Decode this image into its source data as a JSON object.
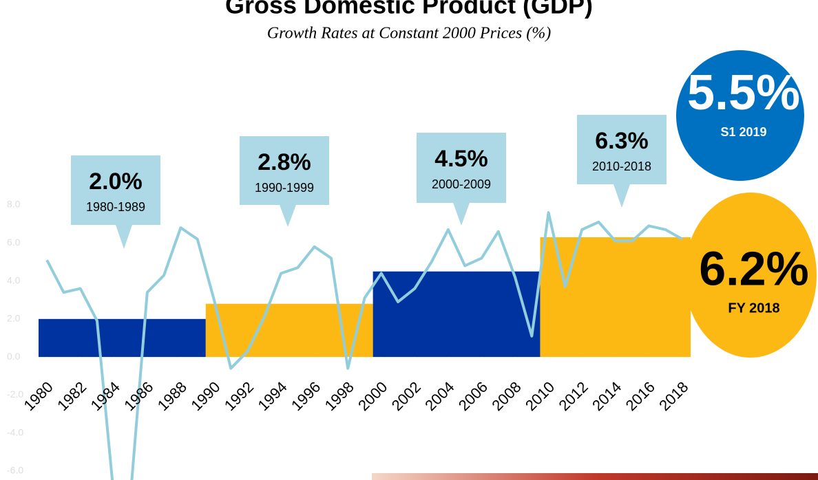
{
  "chart_data": {
    "type": "line",
    "title": "Gross Domestic Product (GDP)",
    "subtitle": "Growth Rates at Constant 2000 Prices (%)",
    "x": [
      1980,
      1981,
      1982,
      1983,
      1984,
      1985,
      1986,
      1987,
      1988,
      1989,
      1990,
      1991,
      1992,
      1993,
      1994,
      1995,
      1996,
      1997,
      1998,
      1999,
      2000,
      2001,
      2002,
      2003,
      2004,
      2005,
      2006,
      2007,
      2008,
      2009,
      2010,
      2011,
      2012,
      2013,
      2014,
      2015,
      2016,
      2017,
      2018
    ],
    "values": [
      5.1,
      3.4,
      3.6,
      1.9,
      -7.3,
      -7.3,
      3.4,
      4.3,
      6.8,
      6.2,
      3.0,
      -0.6,
      0.3,
      2.1,
      4.4,
      4.7,
      5.8,
      5.2,
      -0.6,
      3.1,
      4.4,
      2.9,
      3.6,
      5.0,
      6.7,
      4.8,
      5.2,
      6.6,
      4.2,
      1.1,
      7.6,
      3.7,
      6.7,
      7.1,
      6.1,
      6.1,
      6.9,
      6.7,
      6.2
    ],
    "color": "#92cddc",
    "xlim": [
      1979.5,
      2018.5
    ],
    "xticks": [
      1980,
      1982,
      1984,
      1986,
      1988,
      1990,
      1992,
      1994,
      1996,
      1998,
      2000,
      2002,
      2004,
      2006,
      2008,
      2010,
      2012,
      2014,
      2016,
      2018
    ],
    "ylim": [
      -6.4,
      8
    ],
    "yticks": [
      {
        "value": 8,
        "label": "8.0"
      },
      {
        "value": 6,
        "label": "6.0"
      },
      {
        "value": 4,
        "label": "4.0"
      },
      {
        "value": 2,
        "label": "2.0"
      },
      {
        "value": 0,
        "label": "0.0"
      },
      {
        "value": -2,
        "label": "-2.0"
      },
      {
        "value": -4,
        "label": "-4.0"
      },
      {
        "value": -6,
        "label": "-6.0"
      }
    ],
    "periods": [
      {
        "label": "1980-1989",
        "value": 2.0,
        "value_label": "2.0%",
        "color": "#0033a0"
      },
      {
        "label": "1990-1999",
        "value": 2.8,
        "value_label": "2.8%",
        "color": "#fdb913"
      },
      {
        "label": "2000-2009",
        "value": 4.5,
        "value_label": "4.5%",
        "color": "#0033a0"
      },
      {
        "label": "2010-2018",
        "value": 6.3,
        "value_label": "6.3%",
        "color": "#fdb913"
      }
    ],
    "highlights": [
      {
        "label": "S1 2019",
        "value": 5.5,
        "value_label": "5.5%",
        "color": "#0070c0"
      },
      {
        "label": "FY 2018",
        "value": 6.2,
        "value_label": "6.2%",
        "color": "#fdb913"
      }
    ]
  }
}
